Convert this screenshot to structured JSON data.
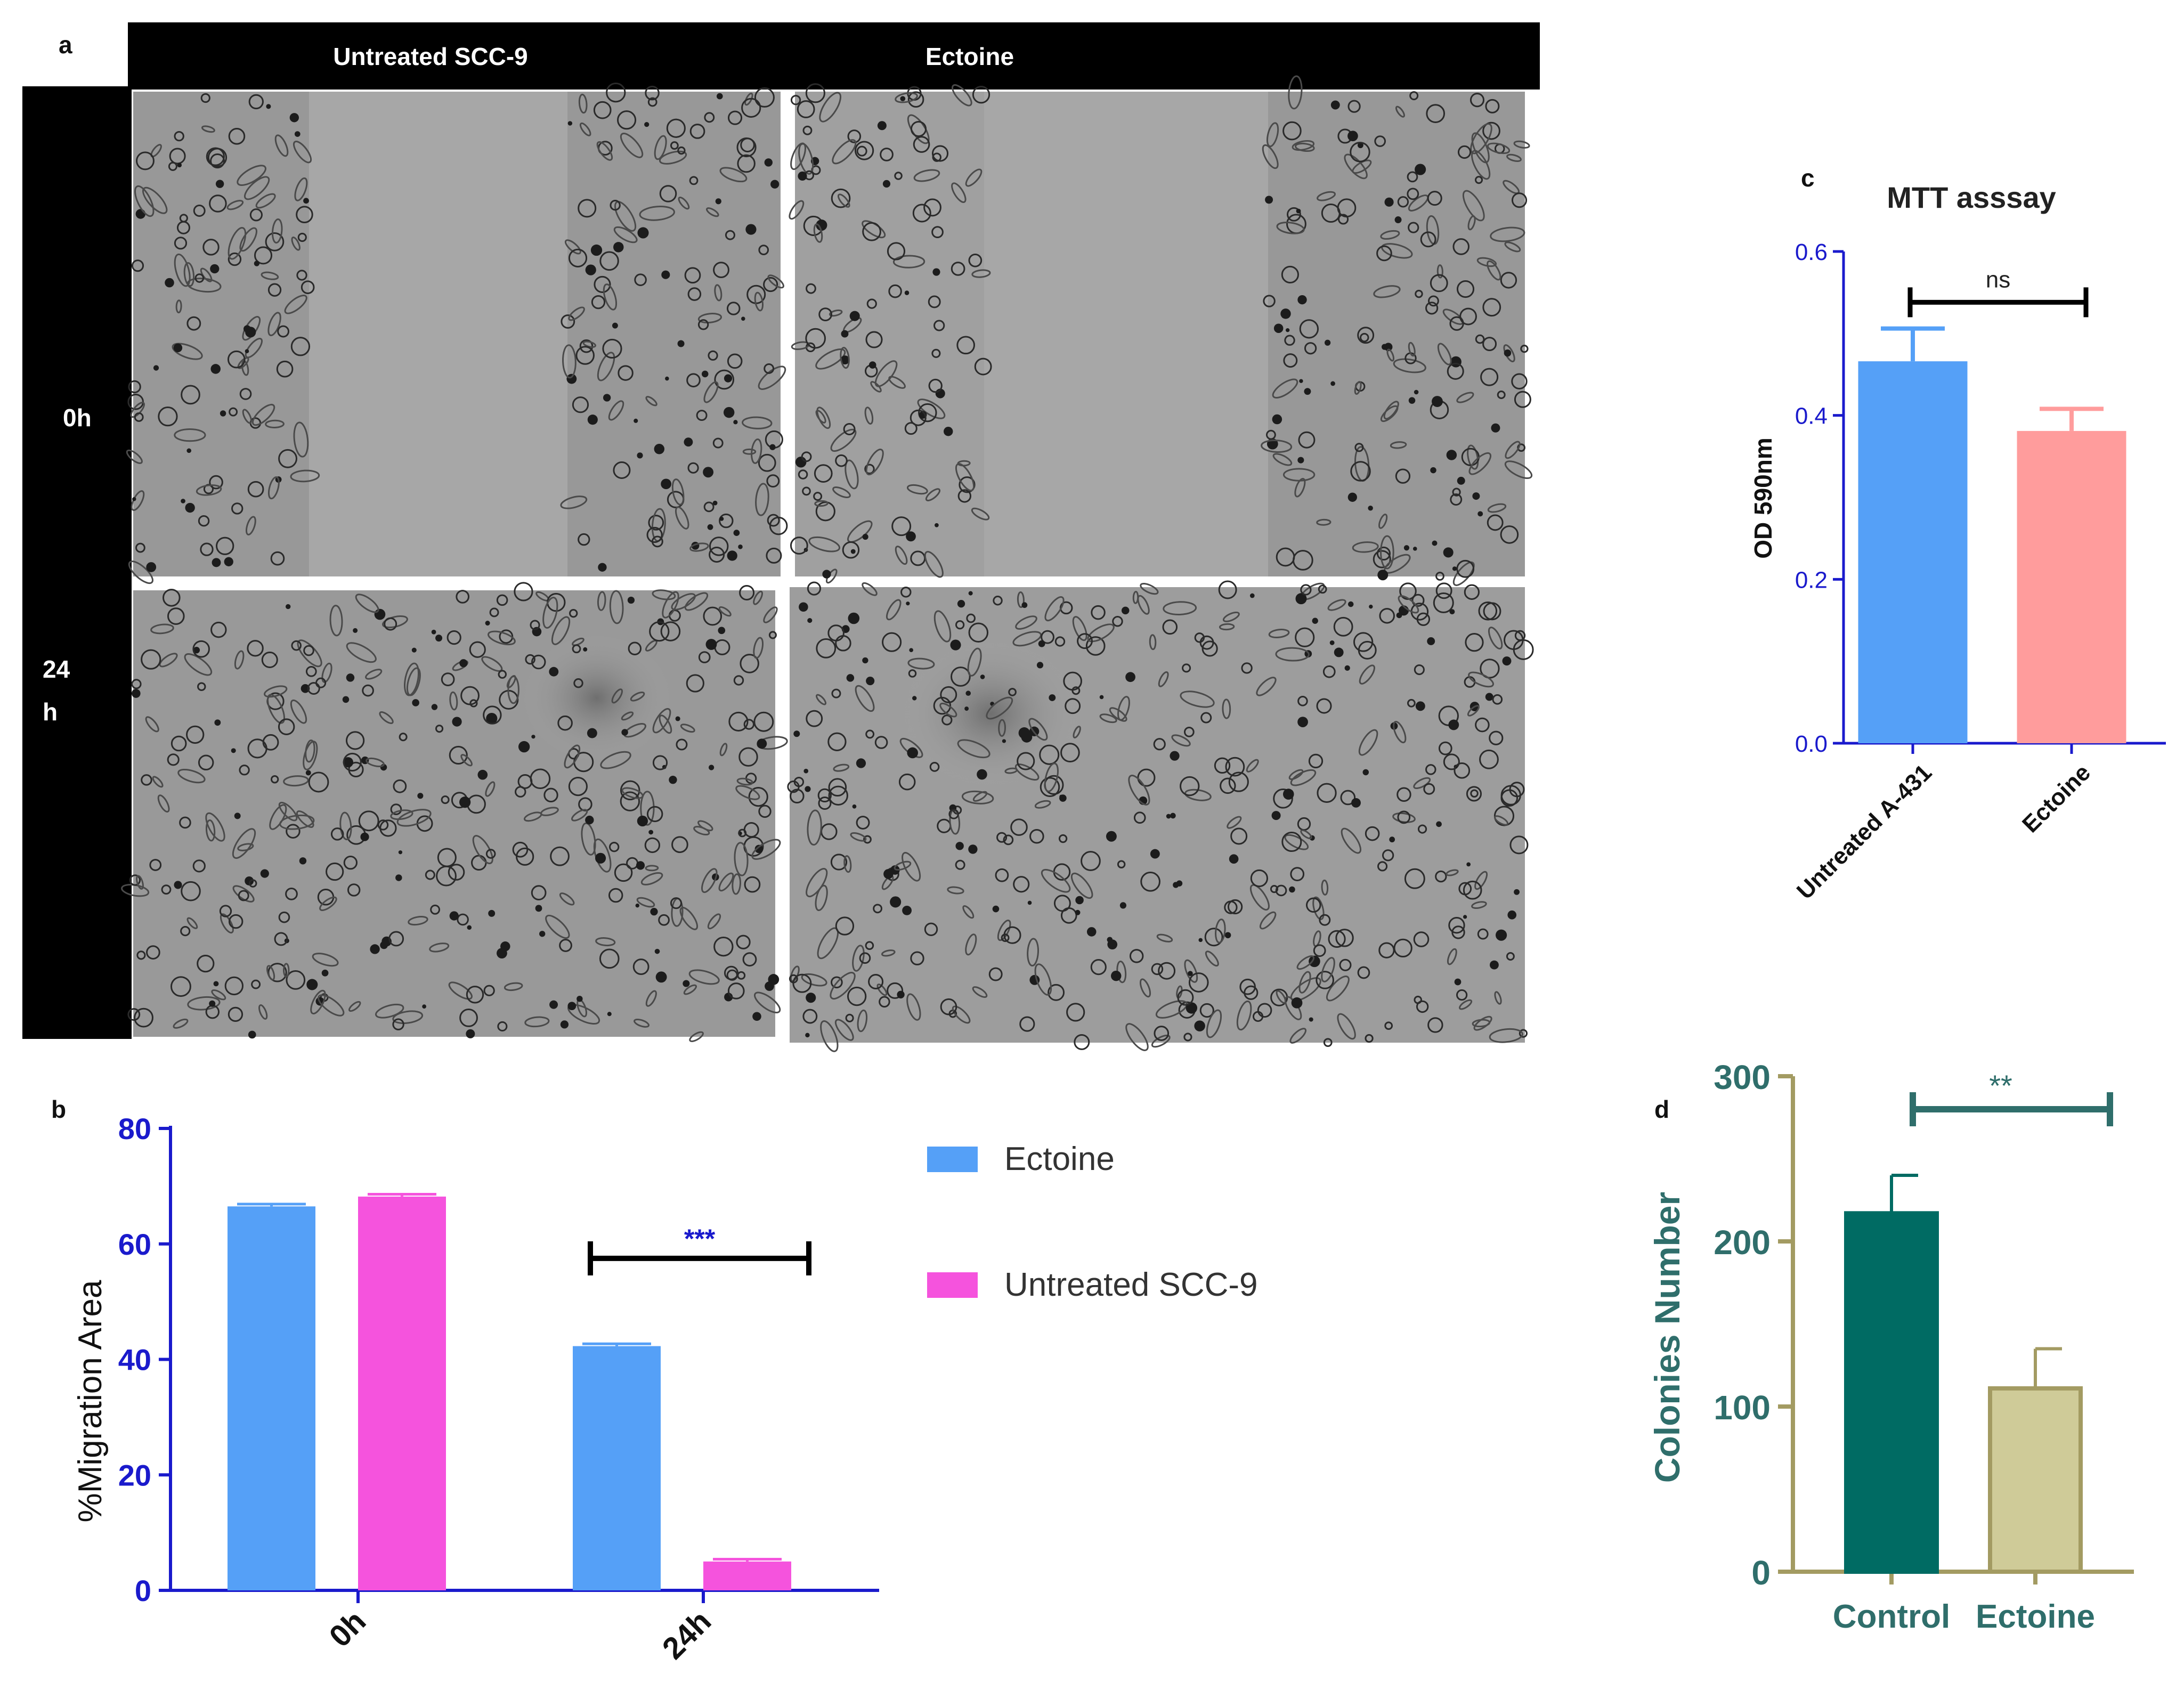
{
  "panel_a": {
    "letter": "a",
    "col_headers": [
      "Untreated SCC-9",
      "Ectoine"
    ],
    "row_labels": [
      "0h",
      "24",
      "h"
    ],
    "micrograph_description_names": [
      "micrograph-untreated-0h",
      "micrograph-ectoine-0h",
      "micrograph-untreated-24h",
      "micrograph-ectoine-24h"
    ]
  },
  "colors": {
    "ectoine_blue": "#55a0f7",
    "untreated_magenta": "#f553dd",
    "axis_blue": "#1a1acc",
    "mtt_blue": "#55a0f7",
    "mtt_pink": "#ff9c9c",
    "control_teal": "#006b63",
    "ectoine_khaki": "#cfcb98",
    "axis_khaki": "#a39b62",
    "label_teal": "#2f6e6b"
  },
  "chart_data": [
    {
      "id": "b",
      "panel_letter": "b",
      "type": "bar",
      "ylabel": "%Migration Area",
      "xlabel": "",
      "ylim": [
        0,
        80
      ],
      "yticks": [
        0,
        20,
        40,
        60,
        80
      ],
      "categories": [
        "0h",
        "24h"
      ],
      "series": [
        {
          "name": "Ectoine",
          "values": [
            66.5,
            42.3
          ],
          "errors": [
            0.4,
            0.4
          ]
        },
        {
          "name": "Untreated SCC-9",
          "values": [
            68.2,
            5.0
          ],
          "errors": [
            0.4,
            0.4
          ]
        }
      ],
      "significance": {
        "label": "***",
        "between": [
          "24h:Ectoine",
          "24h:Untreated SCC-9"
        ]
      },
      "legend_position": "right"
    },
    {
      "id": "c",
      "panel_letter": "c",
      "type": "bar",
      "title": "MTT asssay",
      "ylabel": "OD 590nm",
      "xlabel": "",
      "ylim": [
        0,
        0.6
      ],
      "yticks": [
        "0.0",
        "0.2",
        "0.4",
        "0.6"
      ],
      "categories": [
        "Untreated A-431",
        "Ectoine"
      ],
      "values": [
        0.466,
        0.381
      ],
      "errors": [
        0.04,
        0.027
      ],
      "significance": {
        "label": "ns",
        "between": [
          "Untreated A-431",
          "Ectoine"
        ]
      }
    },
    {
      "id": "d",
      "panel_letter": "d",
      "type": "bar",
      "ylabel": "Colonies Number",
      "xlabel": "",
      "ylim": [
        0,
        300
      ],
      "yticks": [
        0,
        100,
        200,
        300
      ],
      "categories": [
        "Control",
        "Ectoine"
      ],
      "values": [
        217,
        111
      ],
      "errors": [
        23,
        24
      ],
      "significance": {
        "label": "**",
        "between": [
          "Control",
          "Ectoine"
        ]
      }
    }
  ]
}
